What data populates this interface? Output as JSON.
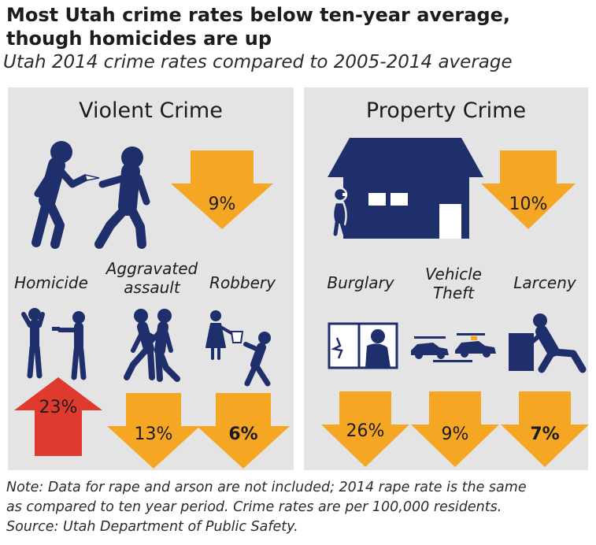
{
  "header": {
    "title_line1": "Most Utah crime rates below ten-year average,",
    "title_line2": "though homicides are up",
    "subtitle": "Utah 2014 crime rates compared to 2005-2014 average"
  },
  "colors": {
    "panel": "#e4e4e4",
    "navy": "#1e2f6b",
    "orange": "#f5a623",
    "red": "#e03a2f"
  },
  "violent": {
    "heading": "Violent Crime",
    "total": {
      "change": "9%",
      "direction": "down"
    },
    "categories": [
      {
        "label_line1": "Homicide",
        "label_line2": "",
        "change": "23%",
        "direction": "up",
        "icon": "homicide-icon"
      },
      {
        "label_line1": "Aggravated",
        "label_line2": "assault",
        "change": "13%",
        "direction": "down",
        "icon": "assault-icon"
      },
      {
        "label_line1": "Robbery",
        "label_line2": "",
        "change": "6%",
        "direction": "down",
        "icon": "robbery-icon"
      }
    ]
  },
  "property": {
    "heading": "Property Crime",
    "total": {
      "change": "10%",
      "direction": "down"
    },
    "categories": [
      {
        "label_line1": "Burglary",
        "label_line2": "",
        "change": "26%",
        "direction": "down",
        "icon": "burglary-icon"
      },
      {
        "label_line1": "Vehicle",
        "label_line2": "Theft",
        "change": "9%",
        "direction": "down",
        "icon": "vehicle-theft-icon"
      },
      {
        "label_line1": "Larceny",
        "label_line2": "",
        "change": "7%",
        "direction": "down",
        "icon": "larceny-icon"
      }
    ]
  },
  "footer": {
    "note_line1": "Note: Data for rape and arson are not included; 2014 rape rate is the same",
    "note_line2": "as compared to ten year period. Crime rates are per 100,000 residents.",
    "source": "Source: Utah Department of Public Safety."
  }
}
